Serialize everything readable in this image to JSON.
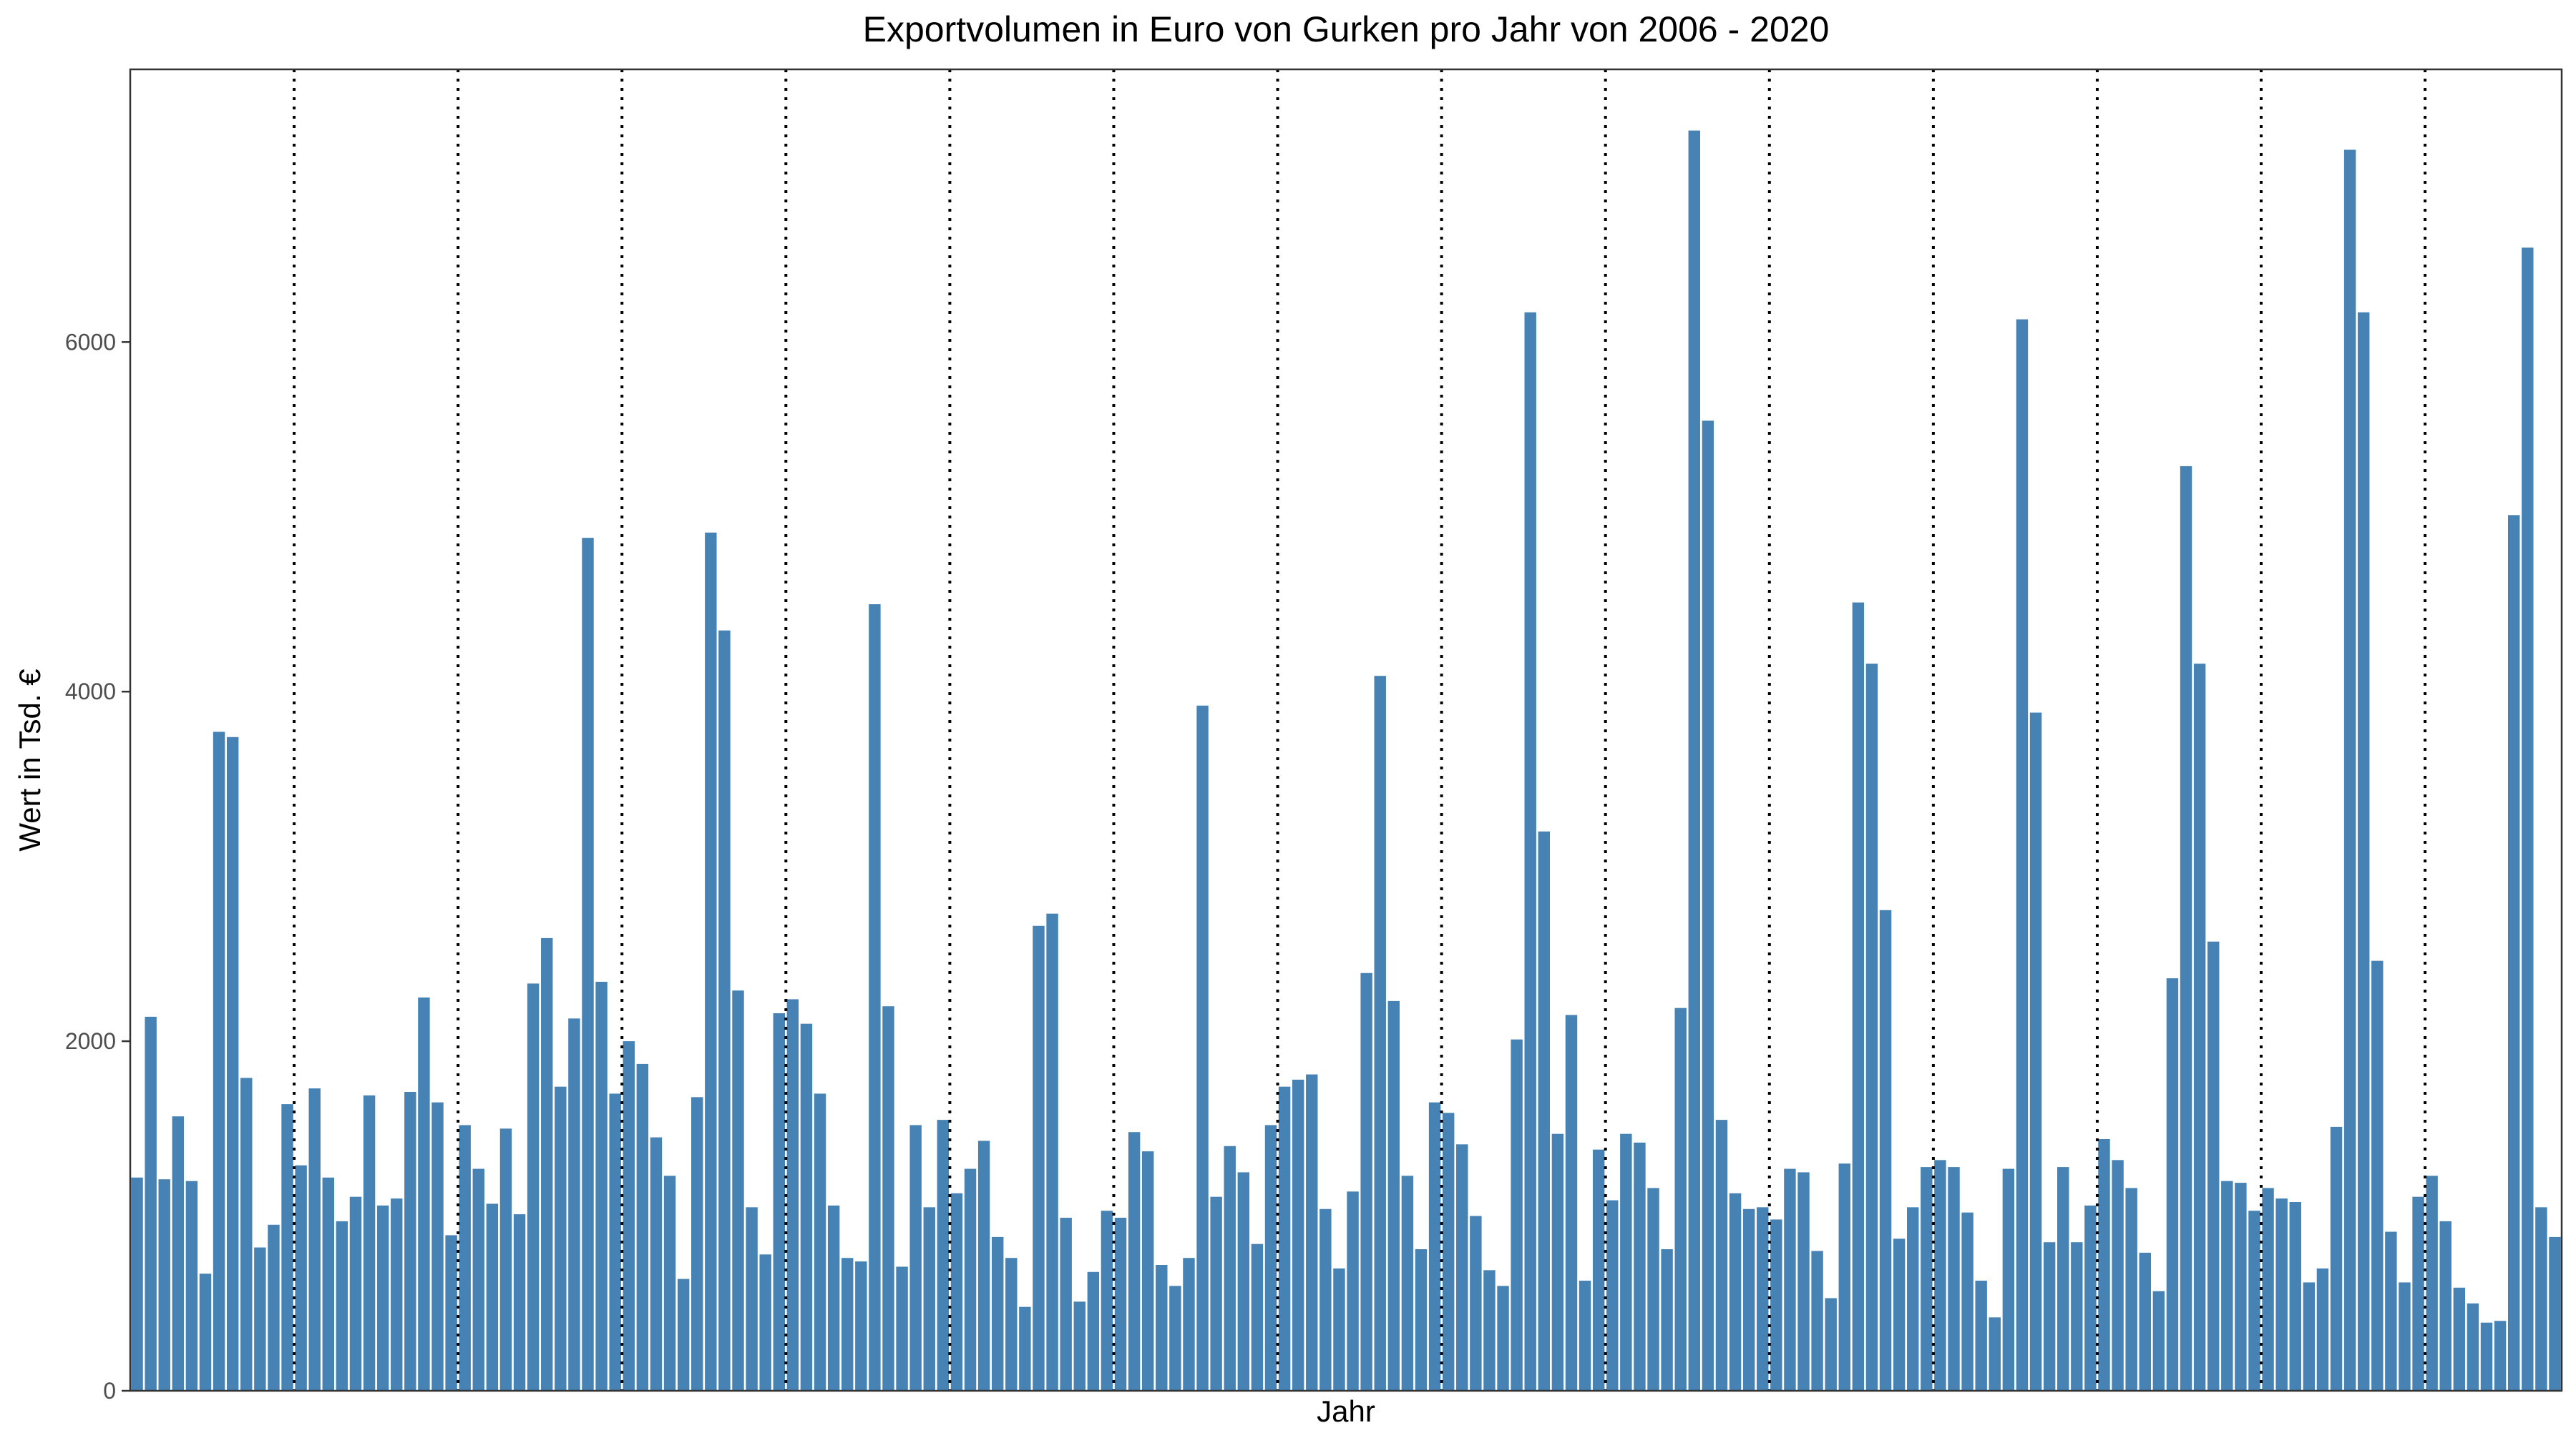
{
  "chart_data": {
    "type": "bar",
    "title": "Exportvolumen in Euro von Gurken pro Jahr von 2006 - 2020",
    "xlabel": "Jahr",
    "ylabel": "Wert in Tsd. €",
    "ylim": [
      0,
      7560
    ],
    "yticks": [
      0,
      2000,
      4000,
      6000
    ],
    "grid": false,
    "bar_color": "#4682b4",
    "year_separator_after_bars": [
      12,
      24,
      36,
      48,
      60,
      72,
      84,
      96,
      108,
      120,
      132,
      144,
      156,
      168
    ],
    "values": [
      1220,
      2140,
      1210,
      1570,
      1200,
      670,
      3770,
      3740,
      1790,
      820,
      950,
      1640,
      1290,
      1730,
      1220,
      970,
      1110,
      1690,
      1060,
      1100,
      1710,
      2250,
      1650,
      890,
      1520,
      1270,
      1070,
      1500,
      1010,
      2330,
      2590,
      1740,
      2130,
      4880,
      2340,
      1700,
      2000,
      1870,
      1450,
      1230,
      640,
      1680,
      4910,
      4350,
      2290,
      1050,
      780,
      2160,
      2240,
      2100,
      1700,
      1060,
      760,
      740,
      4500,
      2200,
      710,
      1520,
      1050,
      1550,
      1130,
      1270,
      1430,
      880,
      760,
      480,
      2660,
      2730,
      990,
      510,
      680,
      1030,
      990,
      1480,
      1370,
      720,
      600,
      760,
      3920,
      1110,
      1400,
      1250,
      840,
      1520,
      1740,
      1780,
      1810,
      1040,
      700,
      1140,
      2390,
      4090,
      2230,
      1230,
      810,
      1650,
      1590,
      1410,
      1000,
      690,
      600,
      2010,
      6170,
      3200,
      1470,
      2150,
      630,
      1380,
      1090,
      1470,
      1420,
      1160,
      810,
      2190,
      7210,
      5550,
      1550,
      1130,
      1040,
      1050,
      980,
      1270,
      1250,
      800,
      530,
      1300,
      4510,
      4160,
      2750,
      870,
      1050,
      1280,
      1320,
      1280,
      1020,
      630,
      420,
      1270,
      6130,
      3880,
      850,
      1280,
      850,
      1060,
      1440,
      1320,
      1160,
      790,
      570,
      2360,
      5290,
      4160,
      2570,
      1200,
      1190,
      1030,
      1160,
      1100,
      1080,
      620,
      700,
      1510,
      7100,
      6170,
      2460,
      910,
      620,
      1110,
      1230,
      970,
      590,
      500,
      390,
      400,
      5010,
      6540,
      1050,
      880
    ]
  }
}
